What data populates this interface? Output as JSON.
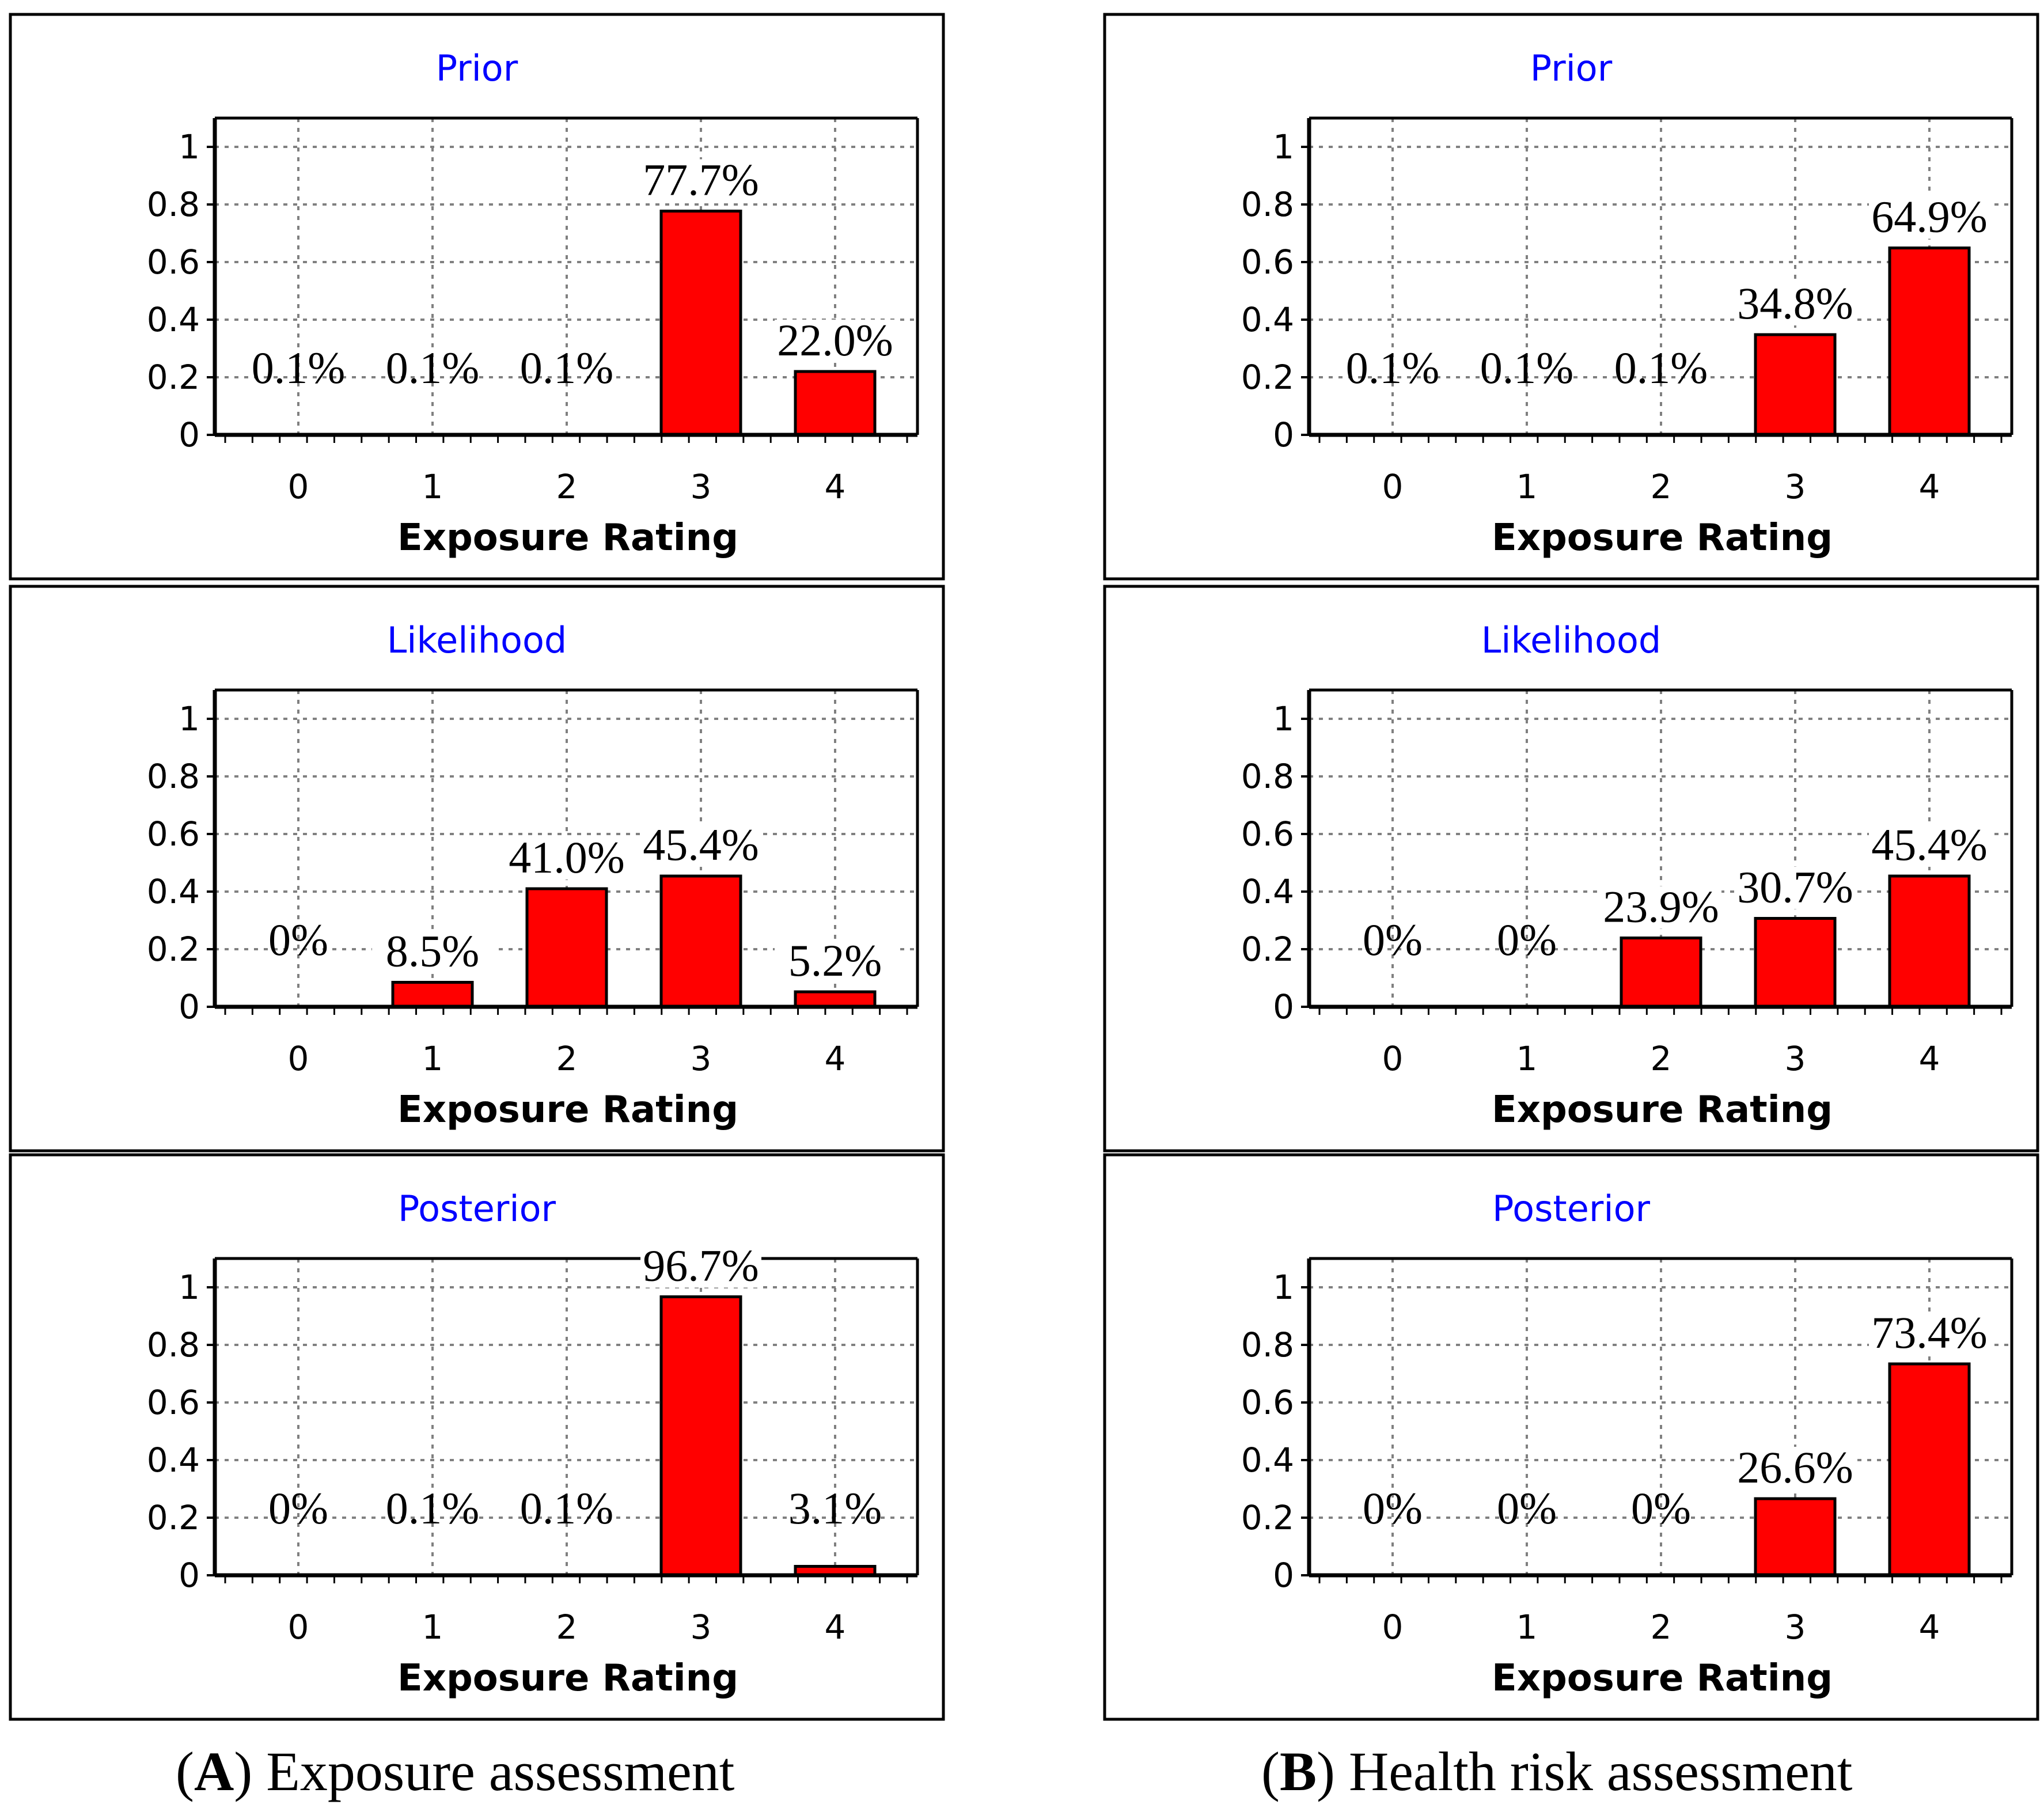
{
  "chart_data": [
    {
      "id": "A-prior",
      "type": "bar",
      "title": "Prior",
      "xlabel": "Exposure Rating",
      "ylabel": "",
      "categories": [
        "0",
        "1",
        "2",
        "3",
        "4"
      ],
      "values": [
        0.001,
        0.001,
        0.001,
        0.777,
        0.22
      ],
      "labels": [
        "0.1%",
        "0.1%",
        "0.1%",
        "77.7%",
        "22.0%"
      ],
      "yticks": [
        "0",
        "0.2",
        "0.4",
        "0.6",
        "0.8",
        "1"
      ],
      "ylim": [
        0,
        1.1
      ],
      "grid": true
    },
    {
      "id": "A-likelihood",
      "type": "bar",
      "title": "Likelihood",
      "xlabel": "Exposure Rating",
      "ylabel": "",
      "categories": [
        "0",
        "1",
        "2",
        "3",
        "4"
      ],
      "values": [
        0.0,
        0.085,
        0.41,
        0.454,
        0.052
      ],
      "labels": [
        "0%",
        "8.5%",
        "41.0%",
        "45.4%",
        "5.2%"
      ],
      "yticks": [
        "0",
        "0.2",
        "0.4",
        "0.6",
        "0.8",
        "1"
      ],
      "ylim": [
        0,
        1.1
      ],
      "grid": true
    },
    {
      "id": "A-posterior",
      "type": "bar",
      "title": "Posterior",
      "xlabel": "Exposure Rating",
      "ylabel": "",
      "categories": [
        "0",
        "1",
        "2",
        "3",
        "4"
      ],
      "values": [
        0.0,
        0.001,
        0.001,
        0.967,
        0.031
      ],
      "labels": [
        "0%",
        "0.1%",
        "0.1%",
        "96.7%",
        "3.1%"
      ],
      "yticks": [
        "0",
        "0.2",
        "0.4",
        "0.6",
        "0.8",
        "1"
      ],
      "ylim": [
        0,
        1.1
      ],
      "grid": true
    },
    {
      "id": "B-prior",
      "type": "bar",
      "title": "Prior",
      "xlabel": "Exposure Rating",
      "ylabel": "",
      "categories": [
        "0",
        "1",
        "2",
        "3",
        "4"
      ],
      "values": [
        0.001,
        0.001,
        0.001,
        0.348,
        0.649
      ],
      "labels": [
        "0.1%",
        "0.1%",
        "0.1%",
        "34.8%",
        "64.9%"
      ],
      "yticks": [
        "0",
        "0.2",
        "0.4",
        "0.6",
        "0.8",
        "1"
      ],
      "ylim": [
        0,
        1.1
      ],
      "grid": true
    },
    {
      "id": "B-likelihood",
      "type": "bar",
      "title": "Likelihood",
      "xlabel": "Exposure Rating",
      "ylabel": "",
      "categories": [
        "0",
        "1",
        "2",
        "3",
        "4"
      ],
      "values": [
        0.0,
        0.0,
        0.239,
        0.307,
        0.454
      ],
      "labels": [
        "0%",
        "0%",
        "23.9%",
        "30.7%",
        "45.4%"
      ],
      "yticks": [
        "0",
        "0.2",
        "0.4",
        "0.6",
        "0.8",
        "1"
      ],
      "ylim": [
        0,
        1.1
      ],
      "grid": true
    },
    {
      "id": "B-posterior",
      "type": "bar",
      "title": "Posterior",
      "xlabel": "Exposure Rating",
      "ylabel": "",
      "categories": [
        "0",
        "1",
        "2",
        "3",
        "4"
      ],
      "values": [
        0.0,
        0.0,
        0.0,
        0.266,
        0.734
      ],
      "labels": [
        "0%",
        "0%",
        "0%",
        "26.6%",
        "73.4%"
      ],
      "yticks": [
        "0",
        "0.2",
        "0.4",
        "0.6",
        "0.8",
        "1"
      ],
      "ylim": [
        0,
        1.1
      ],
      "grid": true
    }
  ],
  "captions": {
    "a_letter": "A",
    "a_text": "Exposure assessment",
    "b_letter": "B",
    "b_text": "Health risk assessment"
  },
  "colors": {
    "bar": "#ff0000",
    "title": "#0000ff",
    "grid": "#808080"
  }
}
